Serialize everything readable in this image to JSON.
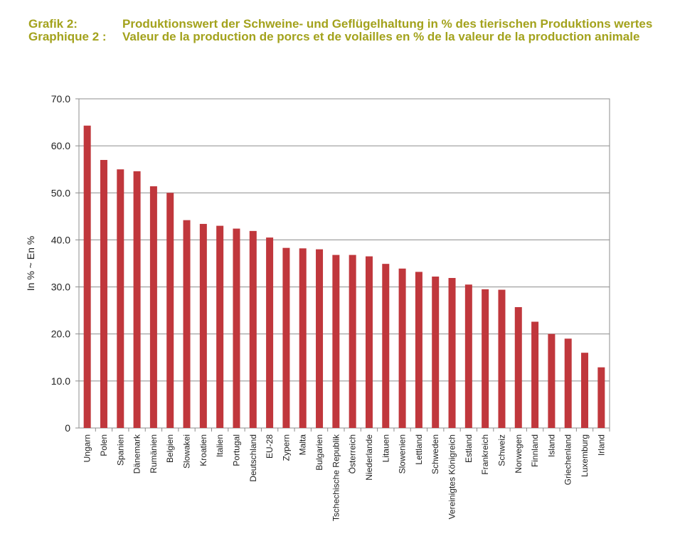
{
  "header": {
    "label_de": "Grafik 2:",
    "title_de": "Produktionswert der Schweine- und Geflügelhaltung in % des tierischen Produktions wertes",
    "label_fr": "Graphique 2 :",
    "title_fr": "Valeur de la production de porcs et de volailles en % de la valeur de la production animale",
    "color": "#a3a21c"
  },
  "chart_data": {
    "type": "bar",
    "ylabel": "In %  ~  En %",
    "ylim": [
      0,
      70
    ],
    "yticks": [
      "0",
      "10.0",
      "20.0",
      "30.0",
      "40.0",
      "50.0",
      "60.0",
      "70.0"
    ],
    "grid": true,
    "bar_color": "#c0373c",
    "categories": [
      "Ungarn",
      "Polen",
      "Spanien",
      "Dänemark",
      "Rumänien",
      "Belgien",
      "Slowakei",
      "Kroatien",
      "Italien",
      "Portugal",
      "Deutschland",
      "EU-28",
      "Zypern",
      "Malta",
      "Bulgarien",
      "Tschechische Republik",
      "Österreich",
      "Niederlande",
      "Litauen",
      "Slowenien",
      "Lettland",
      "Schweden",
      "Vereinigtes Königreich",
      "Estland",
      "Frankreich",
      "Schweiz",
      "Norwegen",
      "Finnland",
      "Island",
      "Griechenland",
      "Luxemburg",
      "Irland"
    ],
    "values": [
      64.3,
      57.0,
      55.0,
      54.6,
      51.4,
      50.0,
      44.2,
      43.4,
      43.0,
      42.4,
      41.9,
      40.5,
      38.3,
      38.2,
      38.0,
      36.8,
      36.8,
      36.5,
      34.9,
      33.9,
      33.2,
      32.2,
      31.9,
      30.5,
      29.5,
      29.4,
      25.7,
      22.6,
      20.0,
      19.0,
      16.0,
      12.9
    ]
  }
}
